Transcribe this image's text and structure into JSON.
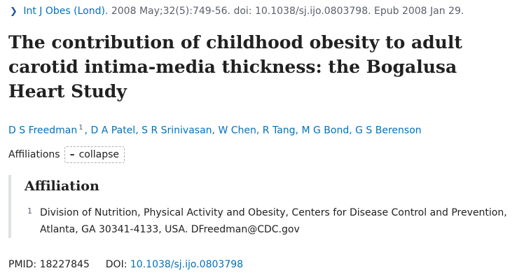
{
  "citation": {
    "journal": "Int J Obes (Lond).",
    "details": "2008 May;32(5):749-56. doi: 10.1038/sj.ijo.0803798. Epub 2008 Jan 29."
  },
  "article": {
    "title": "The contribution of childhood obesity to adult carotid intima-media thickness: the Bogalusa Heart Study"
  },
  "authors": {
    "first": "D S Freedman",
    "first_affil": "1",
    "rest": [
      ", ",
      "D A Patel",
      ", ",
      "S R Srinivasan",
      ", ",
      "W Chen",
      ", ",
      "R Tang",
      ", ",
      "M G Bond",
      ", ",
      "G S Berenson"
    ]
  },
  "affiliations": {
    "label": "Affiliations",
    "toggle_label": "collapse",
    "heading": "Affiliation",
    "items": [
      {
        "num": "1",
        "text": "Division of Nutrition, Physical Activity and Obesity, Centers for Disease Control and Prevention, Atlanta, GA 30341-4133, USA. DFreedman@CDC.gov"
      }
    ]
  },
  "identifiers": {
    "pmid_label": "PMID:",
    "pmid": "18227845",
    "doi_label": "DOI:",
    "doi": "10.1038/sj.ijo.0803798"
  },
  "colors": {
    "link": "#0071bc",
    "text": "#212121",
    "muted": "#5b616b",
    "border": "#dfe1e2"
  }
}
